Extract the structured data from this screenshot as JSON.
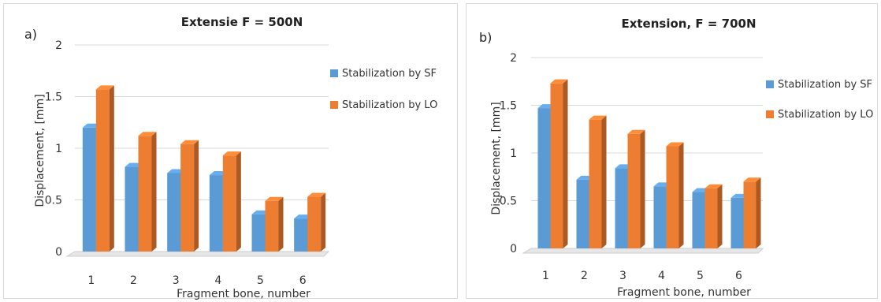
{
  "chart_data": [
    {
      "type": "bar",
      "panel_label": "a)",
      "title": "Extensie  F = 500N",
      "xlabel": "Fragment bone, number",
      "ylabel": "Displacement, [mm]",
      "ylim": [
        0,
        2
      ],
      "yticks": [
        "0",
        "0.5",
        "1",
        "1.5",
        "2"
      ],
      "categories": [
        "1",
        "2",
        "3",
        "4",
        "5",
        "6"
      ],
      "series": [
        {
          "name": "Stabilization by SF",
          "color": "#5b9bd5",
          "values": [
            1.2,
            0.82,
            0.76,
            0.74,
            0.36,
            0.32
          ]
        },
        {
          "name": "Stabilization by LO",
          "color": "#ed7d31",
          "values": [
            1.57,
            1.12,
            1.04,
            0.93,
            0.49,
            0.53
          ]
        }
      ],
      "legend": "right",
      "grid": true
    },
    {
      "type": "bar",
      "panel_label": "b)",
      "title": "Extension,  F = 700N",
      "xlabel": "Fragment bone, number",
      "ylabel": "Displacement, [mm]",
      "ylim": [
        0,
        2
      ],
      "yticks": [
        "0",
        "0.5",
        "1",
        "1.5",
        "2"
      ],
      "categories": [
        "1",
        "2",
        "3",
        "4",
        "5",
        "6"
      ],
      "series": [
        {
          "name": "Stabilization by SF",
          "color": "#5b9bd5",
          "values": [
            1.47,
            0.72,
            0.84,
            0.65,
            0.59,
            0.53
          ]
        },
        {
          "name": "Stabilization by LO",
          "color": "#ed7d31",
          "values": [
            1.73,
            1.35,
            1.2,
            1.07,
            0.63,
            0.7
          ]
        }
      ],
      "legend": "right",
      "grid": true
    }
  ]
}
